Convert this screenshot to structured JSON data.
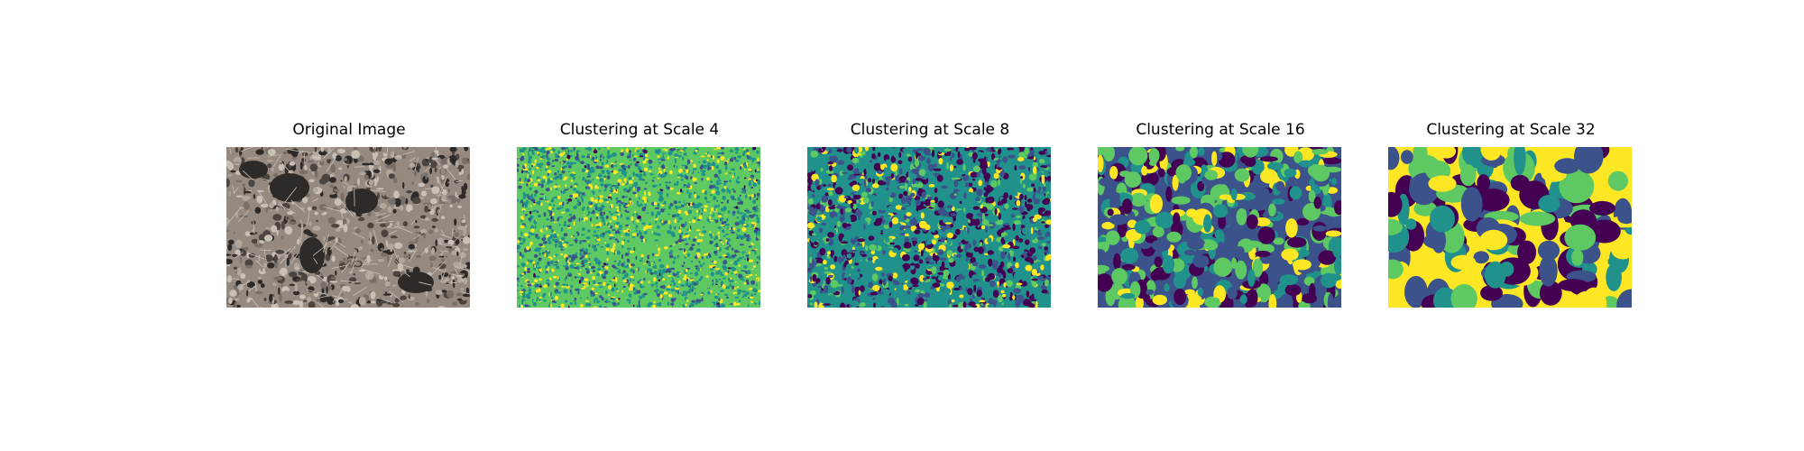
{
  "figure": {
    "panels": [
      {
        "title": "Original Image",
        "kind": "photo"
      },
      {
        "title": "Clustering at Scale 4",
        "kind": "clusters"
      },
      {
        "title": "Clustering at Scale 8",
        "kind": "clusters"
      },
      {
        "title": "Clustering at Scale 16",
        "kind": "clusters"
      },
      {
        "title": "Clustering at Scale 32",
        "kind": "clusters"
      }
    ],
    "cluster_colormap": "viridis",
    "cluster_colors": [
      "#440154",
      "#3b528b",
      "#21918c",
      "#5ec962",
      "#fde725"
    ],
    "photo_colors": [
      "#7a6f66",
      "#968a80",
      "#b2a79c",
      "#4b443f",
      "#2e2a28",
      "#c9bfb4"
    ]
  }
}
